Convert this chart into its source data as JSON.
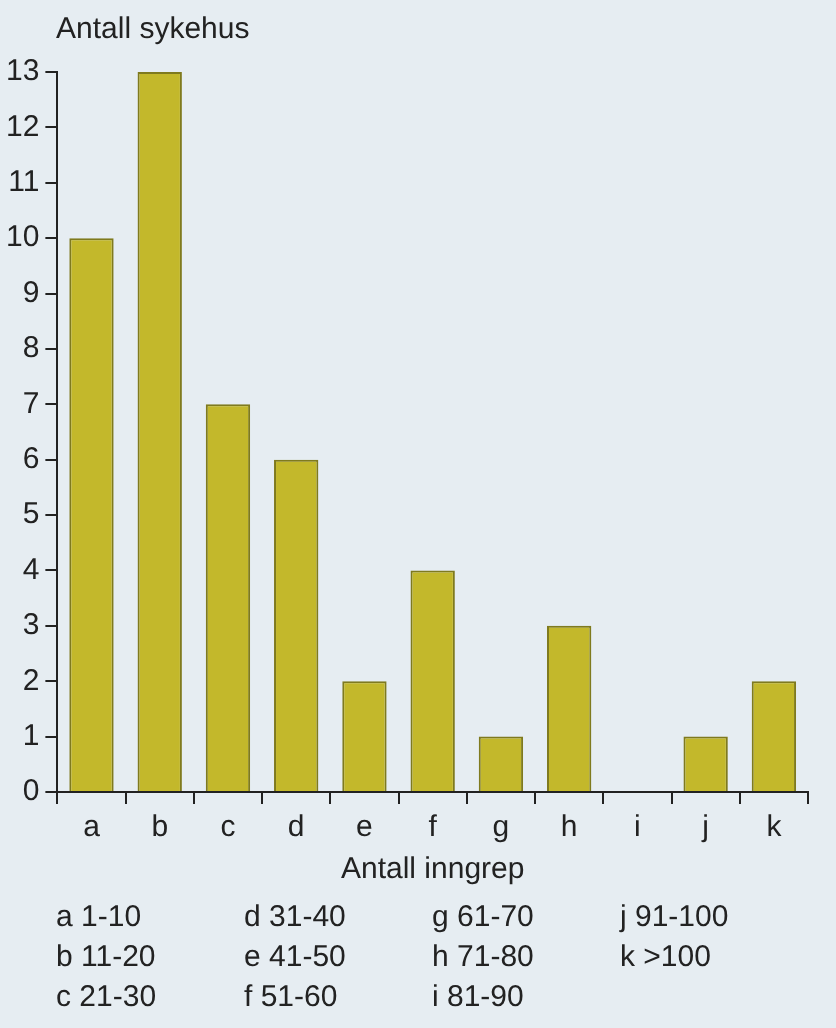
{
  "chart_data": {
    "type": "bar",
    "ylabel": "Antall sykehus",
    "xlabel": "Antall inngrep",
    "categories": [
      "a",
      "b",
      "c",
      "d",
      "e",
      "f",
      "g",
      "h",
      "i",
      "j",
      "k"
    ],
    "values": [
      10,
      13,
      7,
      6,
      2,
      4,
      1,
      3,
      0,
      1,
      2
    ],
    "color": "#c3b82b",
    "ylim": [
      0,
      13
    ],
    "yticks": [
      0,
      1,
      2,
      3,
      4,
      5,
      6,
      7,
      8,
      9,
      10,
      11,
      12,
      13
    ],
    "grid": false,
    "legend": false,
    "annotations": [
      "a  1-10",
      "b  11-20",
      "c  21-30",
      "d  31-40",
      "e  41-50",
      "f  51-60",
      "g  61-70",
      "h  71-80",
      "i  81-90",
      "j  91-100",
      "k  >100"
    ]
  }
}
